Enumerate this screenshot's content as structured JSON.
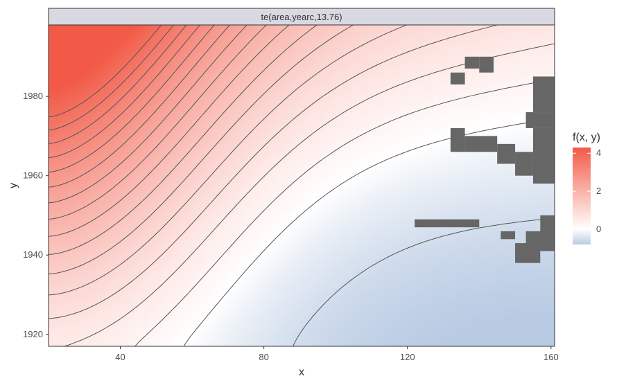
{
  "chart_data": {
    "type": "heatmap",
    "facet_title": "te(area,yearc,13.76)",
    "xlabel": "x",
    "ylabel": "y",
    "xlim": [
      20,
      161
    ],
    "ylim": [
      1917,
      1998
    ],
    "x_ticks": [
      40,
      80,
      120,
      160
    ],
    "y_ticks": [
      1920,
      1940,
      1960,
      1980
    ],
    "legend": {
      "title": "f(x, y)",
      "placement": "right",
      "ticks": [
        0,
        2,
        4
      ],
      "range": [
        -0.8,
        4.3
      ],
      "low_color": "#b9cbe3",
      "mid_color": "#ffffff",
      "high_color": "#f25a47"
    },
    "surface": {
      "description_of_fill": "smooth tensor-product fit; high (~4) at small x / late y, ~0 through middle, ~-0.8 at large x / early y",
      "contour_levels": [
        -0.5,
        0,
        0.25,
        0.5,
        0.75,
        1,
        1.25,
        1.5,
        1.75,
        2,
        2.25,
        2.5,
        2.75,
        3,
        3.25,
        3.5,
        3.75
      ]
    },
    "missing_color": "#666666"
  }
}
